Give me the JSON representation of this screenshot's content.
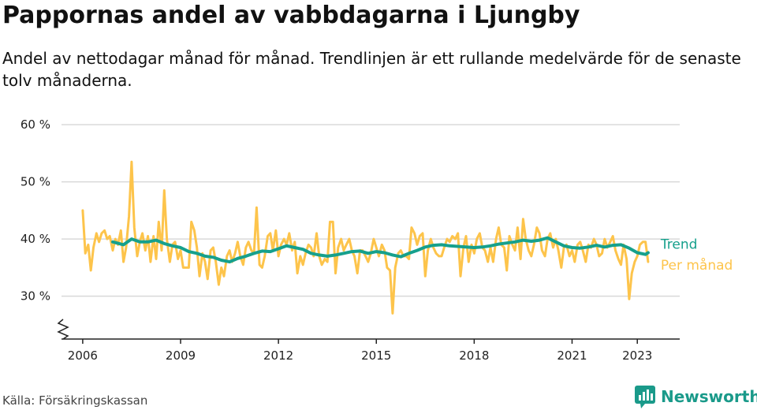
{
  "title": "Pappornas andel av vabbdagarna i Ljungby",
  "subtitle": "Andel av nettodagar månad för månad. Trendlinjen är ett rullande medelvärde för de senaste tolv månaderna.",
  "source": "Källa: Försäkringskassan",
  "brand": "Newsworthy",
  "colors": {
    "trend": "#16a08c",
    "monthly": "#fdc44b",
    "grid": "#d9d9d9",
    "axis": "#222222",
    "brand": "#1a9a8a"
  },
  "chart_data": {
    "type": "line",
    "x_unit": "decimal-year",
    "ylim": [
      22.5,
      62.5
    ],
    "xlim": [
      2005.35,
      2024.3
    ],
    "y_ticks": [
      30,
      40,
      50,
      60
    ],
    "y_tick_labels": [
      "30 %",
      "40 %",
      "50 %",
      "60 %"
    ],
    "x_ticks": [
      2006,
      2009,
      2012,
      2015,
      2018,
      2021,
      2023
    ],
    "x_tick_labels": [
      "2006",
      "2009",
      "2012",
      "2015",
      "2018",
      "2021",
      "2023"
    ],
    "axis_break": true,
    "grid": true,
    "legend": "inline-right",
    "series": [
      {
        "name": "Per månad",
        "key": "monthly",
        "x": [
          2006.0,
          2006.08,
          2006.17,
          2006.25,
          2006.33,
          2006.42,
          2006.5,
          2006.58,
          2006.67,
          2006.75,
          2006.83,
          2006.92,
          2007.0,
          2007.08,
          2007.17,
          2007.25,
          2007.33,
          2007.42,
          2007.5,
          2007.58,
          2007.67,
          2007.75,
          2007.83,
          2007.92,
          2008.0,
          2008.08,
          2008.17,
          2008.25,
          2008.33,
          2008.42,
          2008.5,
          2008.58,
          2008.67,
          2008.75,
          2008.83,
          2008.92,
          2009.0,
          2009.08,
          2009.17,
          2009.25,
          2009.33,
          2009.42,
          2009.5,
          2009.58,
          2009.67,
          2009.75,
          2009.83,
          2009.92,
          2010.0,
          2010.08,
          2010.17,
          2010.25,
          2010.33,
          2010.42,
          2010.5,
          2010.58,
          2010.67,
          2010.75,
          2010.83,
          2010.92,
          2011.0,
          2011.08,
          2011.17,
          2011.25,
          2011.33,
          2011.42,
          2011.5,
          2011.58,
          2011.67,
          2011.75,
          2011.83,
          2011.92,
          2012.0,
          2012.08,
          2012.17,
          2012.25,
          2012.33,
          2012.42,
          2012.5,
          2012.58,
          2012.67,
          2012.75,
          2012.83,
          2012.92,
          2013.0,
          2013.08,
          2013.17,
          2013.25,
          2013.33,
          2013.42,
          2013.5,
          2013.58,
          2013.67,
          2013.75,
          2013.83,
          2013.92,
          2014.0,
          2014.08,
          2014.17,
          2014.25,
          2014.33,
          2014.42,
          2014.5,
          2014.58,
          2014.67,
          2014.75,
          2014.83,
          2014.92,
          2015.0,
          2015.08,
          2015.17,
          2015.25,
          2015.33,
          2015.42,
          2015.5,
          2015.58,
          2015.67,
          2015.75,
          2015.83,
          2015.92,
          2016.0,
          2016.08,
          2016.17,
          2016.25,
          2016.33,
          2016.42,
          2016.5,
          2016.58,
          2016.67,
          2016.75,
          2016.83,
          2016.92,
          2017.0,
          2017.08,
          2017.17,
          2017.25,
          2017.33,
          2017.42,
          2017.5,
          2017.58,
          2017.67,
          2017.75,
          2017.83,
          2017.92,
          2018.0,
          2018.08,
          2018.17,
          2018.25,
          2018.33,
          2018.42,
          2018.5,
          2018.58,
          2018.67,
          2018.75,
          2018.83,
          2018.92,
          2019.0,
          2019.08,
          2019.17,
          2019.25,
          2019.33,
          2019.42,
          2019.5,
          2019.58,
          2019.67,
          2019.75,
          2019.83,
          2019.92,
          2020.0,
          2020.08,
          2020.17,
          2020.25,
          2020.33,
          2020.42,
          2020.5,
          2020.58,
          2020.67,
          2020.75,
          2020.83,
          2020.92,
          2021.0,
          2021.08,
          2021.17,
          2021.25,
          2021.33,
          2021.42,
          2021.5,
          2021.58,
          2021.67,
          2021.75,
          2021.83,
          2021.92,
          2022.0,
          2022.08,
          2022.17,
          2022.25,
          2022.33,
          2022.42,
          2022.5,
          2022.58,
          2022.67,
          2022.75,
          2022.83,
          2022.92,
          2023.0,
          2023.08,
          2023.17,
          2023.25,
          2023.33
        ],
        "values": [
          45.0,
          37.5,
          39.0,
          34.5,
          38.5,
          41.0,
          39.5,
          41.0,
          41.5,
          40.0,
          40.5,
          38.0,
          40.0,
          39.0,
          41.5,
          36.0,
          38.5,
          44.0,
          53.5,
          42.0,
          37.0,
          39.5,
          41.0,
          38.0,
          40.5,
          36.0,
          40.5,
          36.5,
          43.0,
          38.0,
          48.5,
          40.0,
          36.0,
          39.0,
          39.5,
          36.5,
          38.0,
          35.0,
          35.0,
          35.0,
          43.0,
          41.5,
          38.5,
          33.5,
          37.5,
          36.0,
          33.0,
          38.0,
          38.5,
          36.0,
          32.0,
          35.0,
          33.5,
          37.0,
          38.0,
          36.0,
          37.5,
          39.5,
          37.0,
          35.5,
          38.5,
          39.5,
          38.0,
          37.5,
          45.5,
          35.5,
          35.0,
          37.0,
          40.5,
          41.0,
          38.0,
          41.5,
          37.0,
          39.0,
          40.0,
          39.0,
          41.0,
          38.0,
          39.5,
          34.0,
          37.0,
          35.5,
          37.5,
          39.0,
          38.5,
          37.0,
          41.0,
          37.0,
          35.5,
          36.5,
          36.0,
          43.0,
          43.0,
          34.0,
          38.5,
          40.0,
          38.0,
          39.0,
          40.0,
          38.0,
          37.0,
          34.0,
          38.0,
          38.0,
          37.0,
          36.0,
          37.5,
          40.0,
          38.5,
          37.0,
          39.0,
          38.0,
          35.0,
          34.5,
          27.0,
          35.0,
          37.5,
          38.0,
          37.0,
          37.0,
          36.5,
          42.0,
          41.0,
          39.0,
          40.5,
          41.0,
          33.5,
          38.0,
          40.0,
          38.5,
          37.5,
          37.0,
          37.0,
          38.5,
          40.0,
          39.5,
          40.5,
          40.0,
          41.0,
          33.5,
          38.5,
          40.5,
          36.0,
          39.0,
          37.5,
          40.0,
          41.0,
          38.5,
          38.0,
          36.0,
          38.5,
          36.0,
          40.0,
          42.0,
          39.0,
          38.5,
          34.5,
          40.5,
          39.0,
          38.0,
          42.0,
          36.5,
          43.5,
          40.0,
          38.0,
          37.0,
          39.0,
          42.0,
          41.0,
          38.0,
          37.0,
          40.0,
          41.0,
          38.5,
          40.0,
          38.0,
          35.0,
          38.5,
          39.0,
          37.0,
          38.0,
          36.0,
          39.0,
          39.5,
          38.0,
          36.0,
          39.0,
          38.5,
          40.0,
          39.0,
          37.0,
          37.5,
          40.0,
          38.5,
          39.5,
          40.5,
          38.0,
          36.5,
          35.5,
          39.0,
          36.5,
          29.5,
          34.0,
          36.0,
          37.0,
          39.0,
          39.5,
          39.5,
          36.0
        ]
      },
      {
        "name": "Trend",
        "key": "trend",
        "x": [
          2006.92,
          2007.25,
          2007.5,
          2007.75,
          2008.0,
          2008.25,
          2008.5,
          2008.75,
          2009.0,
          2009.25,
          2009.5,
          2009.75,
          2010.0,
          2010.25,
          2010.5,
          2010.75,
          2011.0,
          2011.25,
          2011.5,
          2011.75,
          2012.0,
          2012.25,
          2012.5,
          2012.75,
          2013.0,
          2013.25,
          2013.5,
          2013.75,
          2014.0,
          2014.25,
          2014.5,
          2014.75,
          2015.0,
          2015.25,
          2015.5,
          2015.75,
          2016.0,
          2016.25,
          2016.5,
          2016.75,
          2017.0,
          2017.25,
          2017.5,
          2017.75,
          2018.0,
          2018.25,
          2018.5,
          2018.75,
          2019.0,
          2019.25,
          2019.5,
          2019.75,
          2020.0,
          2020.25,
          2020.5,
          2020.75,
          2021.0,
          2021.25,
          2021.5,
          2021.75,
          2022.0,
          2022.25,
          2022.5,
          2022.75,
          2023.0,
          2023.25,
          2023.33
        ],
        "values": [
          39.5,
          39.0,
          40.0,
          39.5,
          39.5,
          39.8,
          39.2,
          38.8,
          38.5,
          37.8,
          37.5,
          37.0,
          36.8,
          36.3,
          36.0,
          36.6,
          37.0,
          37.5,
          37.9,
          37.8,
          38.3,
          38.8,
          38.5,
          38.2,
          37.5,
          37.2,
          37.0,
          37.2,
          37.5,
          37.8,
          37.9,
          37.5,
          37.8,
          37.6,
          37.2,
          36.9,
          37.5,
          38.0,
          38.6,
          38.9,
          39.0,
          38.8,
          38.7,
          38.6,
          38.5,
          38.6,
          38.8,
          39.1,
          39.3,
          39.5,
          39.8,
          39.6,
          39.8,
          40.2,
          39.5,
          38.8,
          38.5,
          38.4,
          38.6,
          38.9,
          38.6,
          38.9,
          39.0,
          38.4,
          37.6,
          37.3,
          37.6
        ]
      }
    ]
  }
}
